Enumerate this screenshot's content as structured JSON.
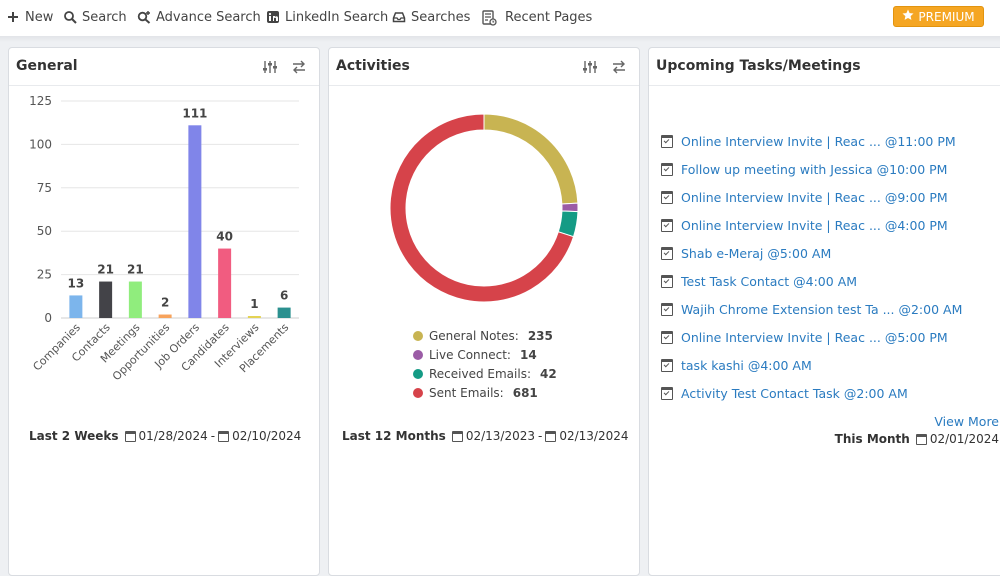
{
  "toolbar": {
    "new": "New",
    "search": "Search",
    "advance_search": "Advance Search",
    "linkedin_search": "LinkedIn Search",
    "searches": "Searches",
    "recent_pages": "Recent Pages",
    "premium": "PREMIUM"
  },
  "general": {
    "title": "General",
    "footer_label": "Last 2 Weeks",
    "date_from": "01/28/2024",
    "date_to": "02/10/2024",
    "separator": "-"
  },
  "activities": {
    "title": "Activities",
    "footer_label": "Last 12 Months",
    "date_from": "02/13/2023",
    "date_to": "02/13/2024",
    "separator": "-"
  },
  "upcoming": {
    "title": "Upcoming Tasks/Meetings",
    "tasks": [
      "Online Interview Invite | Reac ... @11:00 PM",
      "Follow up meeting with Jessica @10:00 PM",
      "Online Interview Invite | Reac ... @9:00 PM",
      "Online Interview Invite | Reac ... @4:00 PM",
      "Shab e-Meraj @5:00 AM",
      "Test Task Contact @4:00 AM",
      "Wajih Chrome Extension test Ta ... @2:00 AM",
      "Online Interview Invite | Reac ... @5:00 PM",
      "task kashi @4:00 AM",
      "Activity Test Contact Task @2:00 AM"
    ],
    "view_more": "View More",
    "footer_label": "This Month",
    "date": "02/01/2024"
  },
  "chart_data": [
    {
      "type": "bar",
      "categories": [
        "Companies",
        "Contacts",
        "Meetings",
        "Opportunities",
        "Job Orders",
        "Candidates",
        "Interviews",
        "Placements"
      ],
      "values": [
        13,
        21,
        21,
        2,
        111,
        40,
        1,
        6
      ],
      "colors": [
        "#7cb5ec",
        "#434348",
        "#90ed7d",
        "#f7a35c",
        "#8085e9",
        "#f15c80",
        "#e4d354",
        "#2b908f"
      ],
      "yticks": [
        0,
        25,
        50,
        75,
        100,
        125
      ],
      "ylim": [
        0,
        125
      ],
      "grid": true
    },
    {
      "type": "pie",
      "labels": [
        "General Notes:",
        "Live Connect:",
        "Received Emails:",
        "Sent Emails:"
      ],
      "values": [
        235,
        14,
        42,
        681
      ],
      "colors": [
        "#c8b452",
        "#9b5ca6",
        "#149b85",
        "#d6434a"
      ],
      "donut": true,
      "legend": "bottom"
    }
  ]
}
